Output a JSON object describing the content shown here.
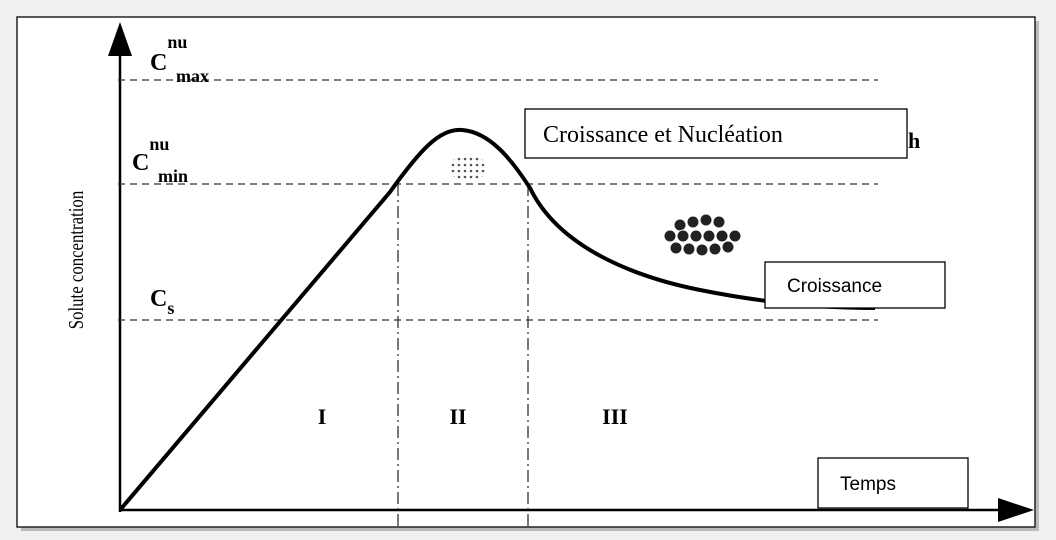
{
  "axis": {
    "y_label": "Solute concentration"
  },
  "levels": [
    {
      "base": "C",
      "sup": "nu",
      "sub": "max"
    },
    {
      "base": "C",
      "sup": "nu",
      "sub": "min"
    },
    {
      "base": "C",
      "sub": "s"
    }
  ],
  "regions": [
    "I",
    "II",
    "III"
  ],
  "boxes": {
    "nucleation": "Croissance et Nucléation",
    "growth": "Croissance",
    "time": "Temps"
  },
  "fragment": "h"
}
